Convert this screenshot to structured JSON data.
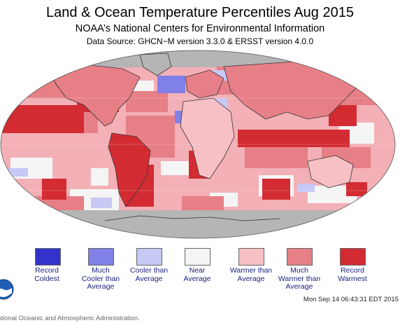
{
  "header": {
    "title": "Land & Ocean Temperature Percentiles Aug 2015",
    "subtitle": "NOAA’s National Centers for Environmental Information",
    "source": "Data Source: GHCN−M version 3.3.0 & ERSST version 4.0.0"
  },
  "colors": {
    "ocean_base": "#f3b0b6",
    "no_data": "#b5b5b5",
    "border": "#333333"
  },
  "legend": [
    {
      "label": "Record\nColdest",
      "color": "#3333cc"
    },
    {
      "label": "Much\nCooler than\nAverage",
      "color": "#8080e6"
    },
    {
      "label": "Cooler than\nAverage",
      "color": "#c8c8f5"
    },
    {
      "label": "Near\nAverage",
      "color": "#f5f5f5"
    },
    {
      "label": "Warmer than\nAverage",
      "color": "#f7c0c4"
    },
    {
      "label": "Much\nWarmer than\nAverage",
      "color": "#e77f86"
    },
    {
      "label": "Record\nWarmest",
      "color": "#d22c32"
    }
  ],
  "footer": {
    "timestamp": "Mon Sep 14 06:43:31 EDT 2015",
    "agency": "ational Oceanic and Atmospheric Administration."
  },
  "logo": {
    "icon": "noaa-logo-icon"
  }
}
